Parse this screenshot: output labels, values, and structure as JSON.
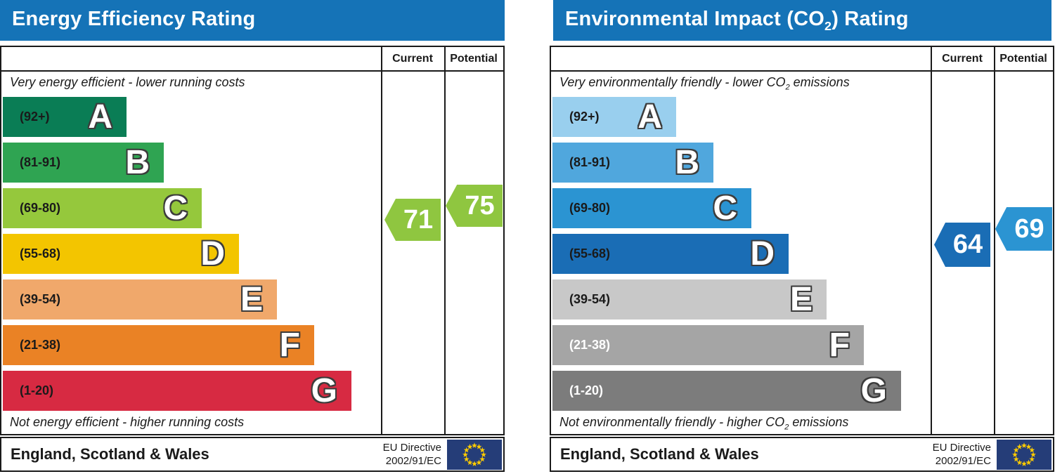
{
  "colors": {
    "header_bar": "#1573b7",
    "border": "#1a1a1a",
    "flag_bg": "#253d78",
    "flag_stars": "#ffcc00"
  },
  "panels": [
    {
      "title": {
        "pre": "Energy Efficiency Rating",
        "sub": "",
        "post": ""
      },
      "columns": {
        "current": "Current",
        "potential": "Potential"
      },
      "caption_top": {
        "pre": "Very energy efficient - lower running costs",
        "sub": "",
        "post": ""
      },
      "caption_bottom": {
        "pre": "Not energy efficient - higher running costs",
        "sub": "",
        "post": ""
      },
      "bands": [
        {
          "letter": "A",
          "range": "(92+)",
          "color": "#0a7d55",
          "label_color": "#1a1a1a"
        },
        {
          "letter": "B",
          "range": "(81-91)",
          "color": "#2fa452",
          "label_color": "#1a1a1a"
        },
        {
          "letter": "C",
          "range": "(69-80)",
          "color": "#95c83c",
          "label_color": "#1a1a1a"
        },
        {
          "letter": "D",
          "range": "(55-68)",
          "color": "#f3c500",
          "label_color": "#1a1a1a"
        },
        {
          "letter": "E",
          "range": "(39-54)",
          "color": "#f0a86b",
          "label_color": "#1a1a1a"
        },
        {
          "letter": "F",
          "range": "(21-38)",
          "color": "#ea8225",
          "label_color": "#1a1a1a"
        },
        {
          "letter": "G",
          "range": "(1-20)",
          "color": "#d72a42",
          "label_color": "#1a1a1a"
        }
      ],
      "current": {
        "value": 71,
        "color": "#8fc640"
      },
      "potential": {
        "value": 75,
        "color": "#8fc640"
      },
      "footer": {
        "region": "England, Scotland & Wales",
        "directive_line1": "EU Directive",
        "directive_line2": "2002/91/EC"
      }
    },
    {
      "title": {
        "pre": "Environmental Impact (CO",
        "sub": "2",
        "post": ") Rating"
      },
      "columns": {
        "current": "Current",
        "potential": "Potential"
      },
      "caption_top": {
        "pre": "Very environmentally friendly - lower CO",
        "sub": "2",
        "post": " emissions"
      },
      "caption_bottom": {
        "pre": "Not environmentally friendly - higher CO",
        "sub": "2",
        "post": " emissions"
      },
      "bands": [
        {
          "letter": "A",
          "range": "(92+)",
          "color": "#99cfee",
          "label_color": "#1a1a1a"
        },
        {
          "letter": "B",
          "range": "(81-91)",
          "color": "#50a7dd",
          "label_color": "#1a1a1a"
        },
        {
          "letter": "C",
          "range": "(69-80)",
          "color": "#2b94d2",
          "label_color": "#1a1a1a"
        },
        {
          "letter": "D",
          "range": "(55-68)",
          "color": "#1a6db5",
          "label_color": "#1a1a1a"
        },
        {
          "letter": "E",
          "range": "(39-54)",
          "color": "#c8c8c8",
          "label_color": "#1a1a1a"
        },
        {
          "letter": "F",
          "range": "(21-38)",
          "color": "#a5a5a5",
          "label_color": "#ffffff"
        },
        {
          "letter": "G",
          "range": "(1-20)",
          "color": "#7c7c7c",
          "label_color": "#ffffff"
        }
      ],
      "current": {
        "value": 64,
        "color": "#1a6db5"
      },
      "potential": {
        "value": 69,
        "color": "#2b94d2"
      },
      "footer": {
        "region": "England, Scotland & Wales",
        "directive_line1": "EU Directive",
        "directive_line2": "2002/91/EC"
      }
    }
  ],
  "chart_data": [
    {
      "type": "bar",
      "title": "Energy Efficiency Rating",
      "categories": [
        "A",
        "B",
        "C",
        "D",
        "E",
        "F",
        "G"
      ],
      "band_ranges": [
        "92+",
        "81-91",
        "69-80",
        "55-68",
        "39-54",
        "21-38",
        "1-20"
      ],
      "series": [
        {
          "name": "Current",
          "values": [
            71
          ]
        },
        {
          "name": "Potential",
          "values": [
            75
          ]
        }
      ],
      "xlim": [
        1,
        100
      ],
      "annotations": [
        "Very energy efficient - lower running costs",
        "Not energy efficient - higher running costs",
        "England, Scotland & Wales",
        "EU Directive 2002/91/EC"
      ],
      "legend_position": "top-right-columns"
    },
    {
      "type": "bar",
      "title": "Environmental Impact (CO2) Rating",
      "categories": [
        "A",
        "B",
        "C",
        "D",
        "E",
        "F",
        "G"
      ],
      "band_ranges": [
        "92+",
        "81-91",
        "69-80",
        "55-68",
        "39-54",
        "21-38",
        "1-20"
      ],
      "series": [
        {
          "name": "Current",
          "values": [
            64
          ]
        },
        {
          "name": "Potential",
          "values": [
            69
          ]
        }
      ],
      "xlim": [
        1,
        100
      ],
      "annotations": [
        "Very environmentally friendly - lower CO2 emissions",
        "Not environmentally friendly - higher CO2 emissions",
        "England, Scotland & Wales",
        "EU Directive 2002/91/EC"
      ],
      "legend_position": "top-right-columns"
    }
  ]
}
